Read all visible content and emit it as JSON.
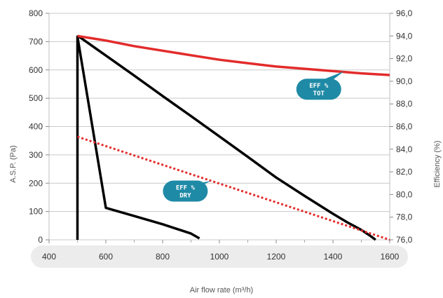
{
  "chart_data": {
    "type": "line",
    "xlabel": "Air flow rate (m³/h)",
    "ylabel": "A.S.P. (Pa)",
    "y2label": "Efficiency (%)",
    "xlim": [
      400,
      1600
    ],
    "ylim": [
      0,
      800
    ],
    "y2lim": [
      76,
      96
    ],
    "x_ticks": [
      "400",
      "600",
      "800",
      "1000",
      "1200",
      "1400",
      "1600"
    ],
    "y_ticks": [
      "0",
      "100",
      "200",
      "300",
      "400",
      "500",
      "600",
      "700",
      "800"
    ],
    "y2_ticks": [
      "76,0",
      "78,0",
      "80,0",
      "82,0",
      "84,0",
      "86,0",
      "88,0",
      "90,0",
      "92,0",
      "94,0",
      "96,0"
    ],
    "grid": "horizontal",
    "series": [
      {
        "name": "",
        "axis": "left",
        "style": "solid",
        "color": "#000000",
        "x": [
          500,
          500,
          500,
          600,
          700,
          800,
          900,
          930
        ],
        "y": [
          0,
          140,
          718,
          113,
          84,
          55,
          22,
          5
        ]
      },
      {
        "name": "",
        "axis": "left",
        "style": "solid",
        "color": "#000000",
        "x": [
          505,
          600,
          700,
          800,
          900,
          1000,
          1100,
          1200,
          1300,
          1400,
          1450,
          1500,
          1530,
          1545,
          1550
        ],
        "y": [
          718,
          651,
          580,
          508,
          437,
          365,
          293,
          220,
          155,
          92,
          62,
          35,
          15,
          4,
          0
        ]
      },
      {
        "name": "EFF % TOT",
        "axis": "right",
        "style": "solid",
        "color": "#e32b2b",
        "x": [
          500,
          600,
          700,
          800,
          900,
          1000,
          1100,
          1200,
          1300,
          1400,
          1500,
          1600
        ],
        "y": [
          94.0,
          93.6,
          93.1,
          92.7,
          92.3,
          91.9,
          91.6,
          91.3,
          91.1,
          90.9,
          90.7,
          90.55
        ]
      },
      {
        "name": "EFF % DRY",
        "axis": "right",
        "style": "dotted",
        "color": "#e32b2b",
        "x": [
          500,
          1600
        ],
        "y": [
          85.1,
          76.0
        ]
      }
    ],
    "annotations": [
      {
        "line1": "EFF %",
        "line2": "TOT",
        "x": 1350,
        "y": 89.3,
        "target_x": 1440,
        "target_y": 90.9,
        "color": "#1f8aa6"
      },
      {
        "line1": "EFF %",
        "line2": "DRY",
        "x": 880,
        "y": 80.3,
        "target_x": 970,
        "target_y": 81.2,
        "color": "#1f8aa6"
      }
    ]
  }
}
